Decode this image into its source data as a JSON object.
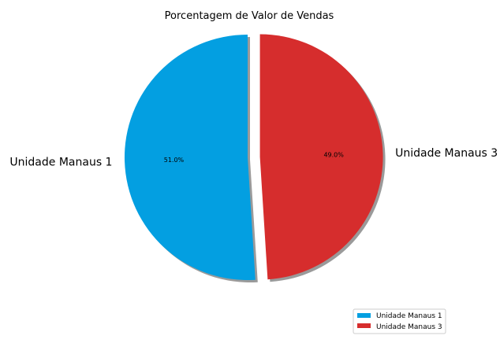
{
  "chart_data": {
    "type": "pie",
    "title": "Porcentagem de Valor de Vendas",
    "slices": [
      {
        "label": "Unidade Manaus 1",
        "value": 51.0,
        "pct_label": "51.0%",
        "color": "#039fe1",
        "exploded": false
      },
      {
        "label": "Unidade Manaus 3",
        "value": 49.0,
        "pct_label": "49.0%",
        "color": "#d62d2d",
        "exploded": true
      }
    ],
    "start_angle_deg": 90,
    "direction": "counterclockwise",
    "shadow": true,
    "legend": {
      "placement": "bottom-right",
      "entries": [
        "Unidade Manaus 1",
        "Unidade Manaus 3"
      ]
    }
  }
}
